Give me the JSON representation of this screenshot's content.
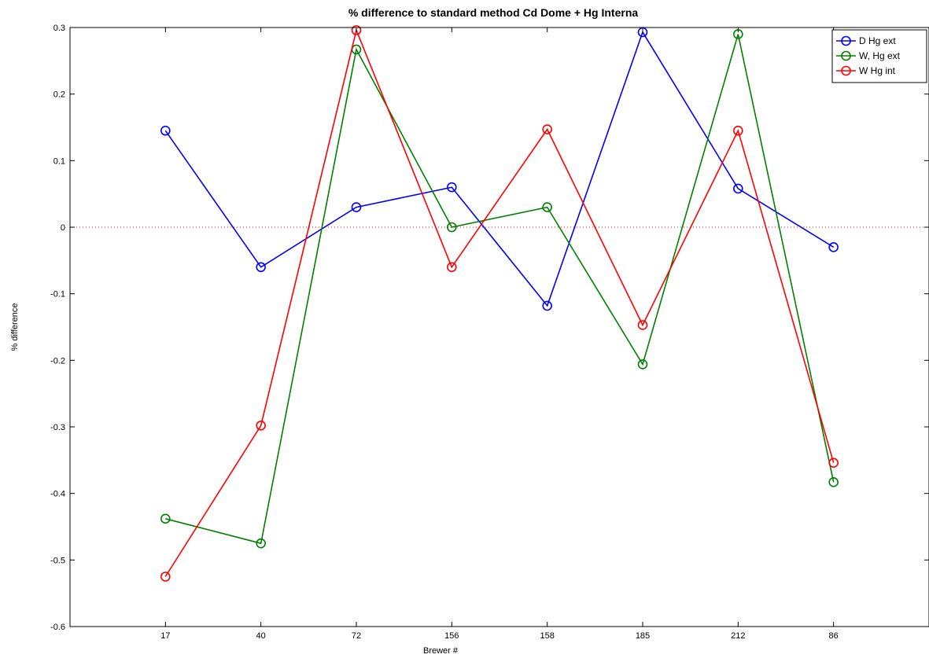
{
  "chart_data": {
    "type": "line",
    "title": "% difference to standard method Cd Dome + Hg Interna",
    "xlabel": "Brewer #",
    "ylabel": "% difference",
    "categories": [
      "17",
      "40",
      "72",
      "156",
      "158",
      "185",
      "212",
      "86"
    ],
    "xlim": [
      0,
      9
    ],
    "ylim": [
      -0.6,
      0.3
    ],
    "yticks": [
      "-0.6",
      "-0.5",
      "-0.4",
      "-0.3",
      "-0.2",
      "-0.1",
      "0",
      "0.1",
      "0.2",
      "0.3"
    ],
    "grid": false,
    "legend_position": "top-right",
    "reference_line": {
      "y": 0,
      "color": "#ff0000",
      "style": "dotted"
    },
    "series": [
      {
        "name": "D Hg ext",
        "color": "#0000ff",
        "marker": "circle",
        "values": [
          0.145,
          -0.06,
          0.03,
          0.06,
          -0.118,
          0.293,
          0.058,
          -0.03
        ]
      },
      {
        "name": "W, Hg ext",
        "color": "#008000",
        "marker": "circle",
        "values": [
          -0.438,
          -0.475,
          0.267,
          0.0,
          0.03,
          -0.206,
          0.29,
          -0.383
        ]
      },
      {
        "name": "W Hg int",
        "color": "#ff0000",
        "marker": "circle",
        "values": [
          -0.525,
          -0.298,
          0.296,
          -0.06,
          0.147,
          -0.147,
          0.145,
          -0.354
        ]
      }
    ]
  }
}
